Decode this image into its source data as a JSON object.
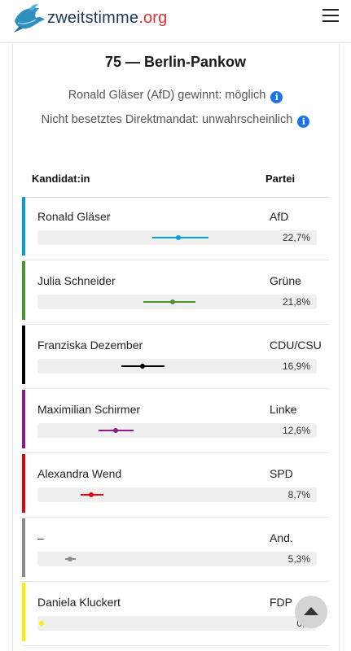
{
  "header": {
    "brand_main": "zweitstimme",
    "brand_tld": ".org"
  },
  "constituency": {
    "title": "75 — Berlin-Pankow",
    "status_winner": "Ronald Gläser (AfD) gewinnt: möglich",
    "status_direct": "Nicht besetztes Direktmandat: unwahrscheinlich",
    "info_glyph": "i"
  },
  "table": {
    "col_candidate": "Kandidat:in",
    "col_party": "Partei",
    "rows": [
      {
        "name": "Ronald Gläser",
        "party": "AfD",
        "pct_label": "22,7%",
        "estimate": 22.7,
        "low": 18.5,
        "high": 27.5,
        "color": "#009ee0"
      },
      {
        "name": "Julia Schneider",
        "party": "Grüne",
        "pct_label": "21,8%",
        "estimate": 21.8,
        "low": 17.0,
        "high": 25.5,
        "color": "#46962b"
      },
      {
        "name": "Franziska Dezember",
        "party": "CDU/CSU",
        "pct_label": "16,9%",
        "estimate": 16.9,
        "low": 13.5,
        "high": 20.5,
        "color": "#000000"
      },
      {
        "name": "Maximilian Schirmer",
        "party": "Linke",
        "pct_label": "12,6%",
        "estimate": 12.6,
        "low": 9.8,
        "high": 15.5,
        "color": "#8c1a8c"
      },
      {
        "name": "Alexandra Wend",
        "party": "SPD",
        "pct_label": "8,7%",
        "estimate": 8.7,
        "low": 6.9,
        "high": 10.6,
        "color": "#e3000f"
      },
      {
        "name": "–",
        "party": "And.",
        "pct_label": "5,3%",
        "estimate": 5.3,
        "low": 4.4,
        "high": 6.2,
        "color": "#8a8a8a"
      },
      {
        "name": "Daniela Kluckert",
        "party": "FDP",
        "pct_label": "0,?",
        "estimate": 0.6,
        "low": 0.4,
        "high": 0.8,
        "color": "#ffed00"
      }
    ]
  },
  "scale_max_pct": 45
}
